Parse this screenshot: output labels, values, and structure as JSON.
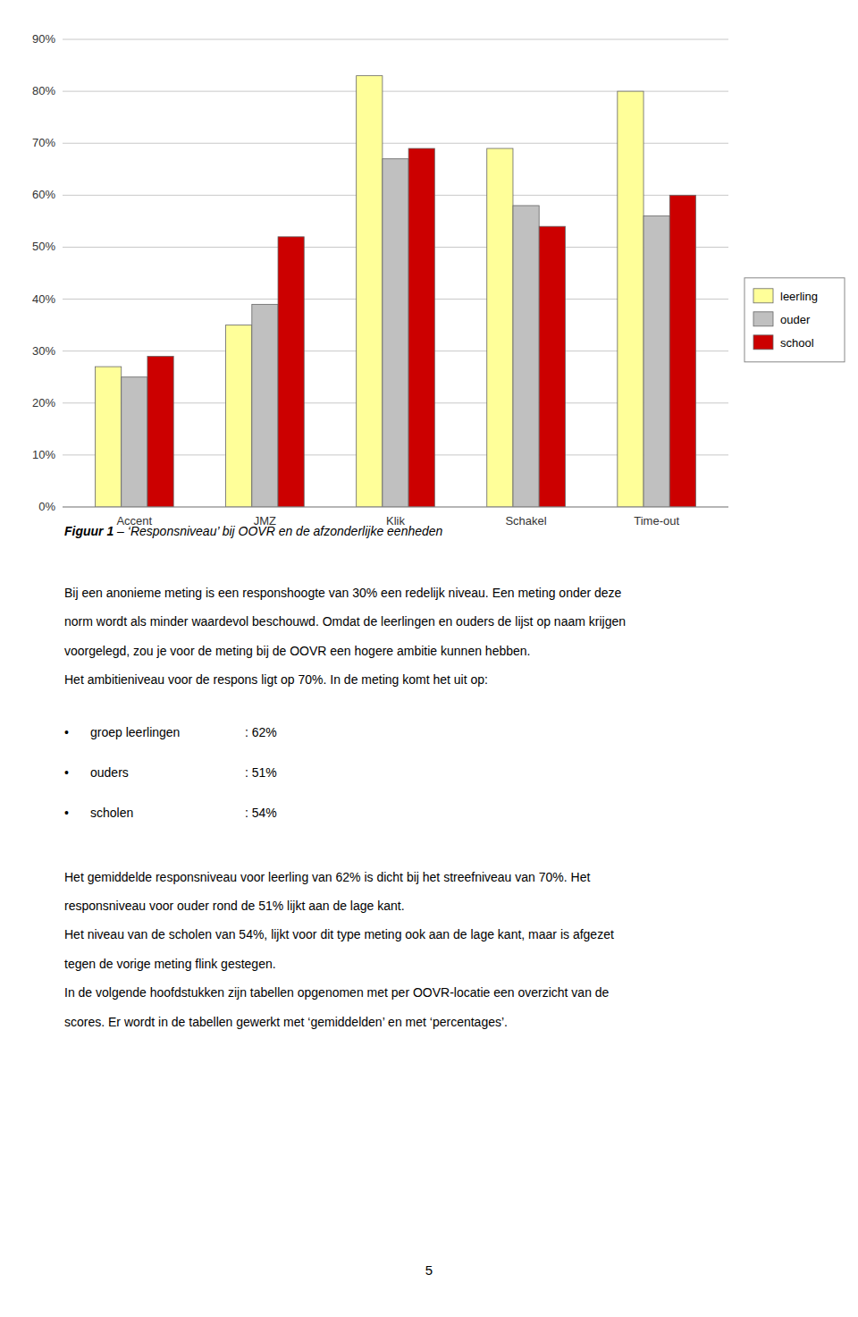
{
  "chart_data": {
    "type": "bar",
    "categories": [
      "Accent",
      "JMZ",
      "Klik",
      "Schakel",
      "Time-out"
    ],
    "series": [
      {
        "name": "leerling",
        "color": "#FFFF99",
        "values": [
          0.27,
          0.35,
          0.83,
          0.69,
          0.8
        ]
      },
      {
        "name": "ouder",
        "color": "#C0C0C0",
        "values": [
          0.25,
          0.39,
          0.67,
          0.58,
          0.56
        ]
      },
      {
        "name": "school",
        "color": "#CC0000",
        "values": [
          0.29,
          0.52,
          0.69,
          0.54,
          0.6
        ]
      }
    ],
    "ylim": [
      0,
      0.9
    ],
    "yticks": [
      {
        "value": 0.0,
        "label": "0%"
      },
      {
        "value": 0.1,
        "label": "10%"
      },
      {
        "value": 0.2,
        "label": "20%"
      },
      {
        "value": 0.3,
        "label": "30%"
      },
      {
        "value": 0.4,
        "label": "40%"
      },
      {
        "value": 0.5,
        "label": "50%"
      },
      {
        "value": 0.6,
        "label": "60%"
      },
      {
        "value": 0.7,
        "label": "70%"
      },
      {
        "value": 0.8,
        "label": "80%"
      },
      {
        "value": 0.9,
        "label": "90%"
      }
    ],
    "grid": true,
    "legend": "right"
  },
  "caption_bold": "Figuur 1",
  "caption_text": " – ‘Responsniveau’ bij OOVR en de afzonderlijke eenheden",
  "body_paragraph_1": [
    "Bij een anonieme meting is een responshoogte van 30% een redelijk niveau. Een meting onder deze",
    "norm wordt als minder waardevol beschouwd. Omdat de leerlingen en ouders de lijst op naam krijgen",
    "voorgelegd, zou je voor de meting bij de OOVR een hogere ambitie kunnen hebben.",
    "Het ambitieniveau voor de respons ligt op 70%. In de meting komt het uit op:"
  ],
  "bullet_symbol": "•",
  "bullets": [
    {
      "label": "groep leerlingen",
      "value": ": 62%"
    },
    {
      "label": "ouders",
      "value": ": 51%"
    },
    {
      "label": "scholen",
      "value": ": 54%"
    }
  ],
  "body_paragraph_2": [
    "Het gemiddelde responsniveau voor leerling van 62% is dicht bij het streefniveau van 70%. Het",
    "responsniveau voor ouder rond de 51% lijkt aan de lage kant.",
    "Het niveau van de scholen van 54%, lijkt voor dit type meting ook aan de lage kant, maar is afgezet",
    "tegen de vorige meting flink gestegen.",
    "In de volgende hoofdstukken zijn tabellen opgenomen met per OOVR-locatie een overzicht van de",
    "scores. Er wordt in de tabellen gewerkt met ‘gemiddelden’ en met ‘percentages’."
  ],
  "page_number": "5"
}
